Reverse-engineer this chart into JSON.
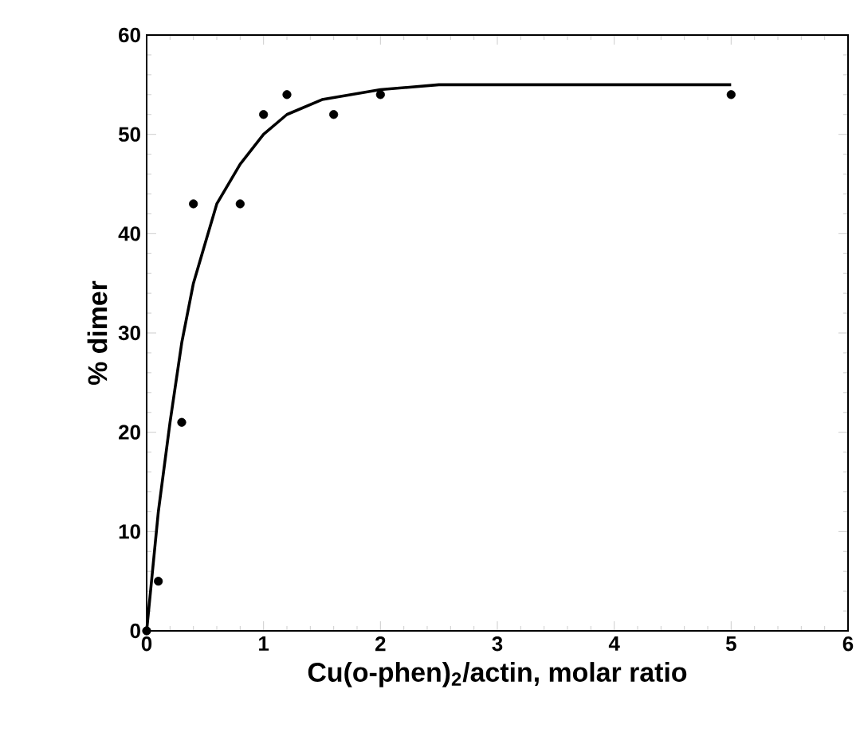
{
  "chart_data": {
    "type": "scatter",
    "xlabel": "Cu(o-phen)$_{2}$/actin, molar ratio",
    "ylabel": "% dimer",
    "xlim": [
      0,
      6
    ],
    "ylim": [
      0,
      60
    ],
    "xticks": [
      0,
      1,
      2,
      3,
      4,
      5,
      6
    ],
    "yticks": [
      0,
      10,
      20,
      30,
      40,
      50,
      60
    ],
    "grid": false,
    "series": [
      {
        "color": "#000000",
        "marker": "circle",
        "x": [
          0,
          0.1,
          0.3,
          0.4,
          0.8,
          1.0,
          1.2,
          1.6,
          2.0,
          5.0
        ],
        "values": [
          0,
          5,
          21,
          43,
          43,
          52,
          54,
          52,
          54,
          54
        ]
      },
      {
        "type": "line",
        "color": "#000000",
        "marker": "none",
        "line_style": "solid",
        "x": [
          0,
          0.1,
          0.2,
          0.3,
          0.4,
          0.5,
          0.6,
          0.8,
          1.0,
          1.2,
          1.5,
          2.0,
          2.5,
          3,
          4,
          5
        ],
        "values": [
          0,
          12,
          21,
          29,
          35,
          39,
          43,
          47,
          50,
          52,
          53.5,
          54.5,
          55,
          55,
          55,
          55
        ]
      }
    ]
  }
}
